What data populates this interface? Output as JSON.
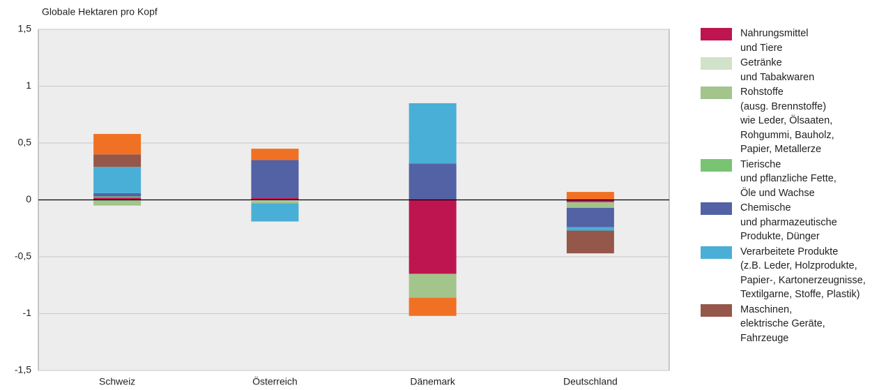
{
  "chart_data": {
    "type": "stacked-bar",
    "y_label": "Globale Hektaren pro Kopf",
    "categories": [
      "Schweiz",
      "Österreich",
      "Dänemark",
      "Deutschland"
    ],
    "ylim": [
      -1.5,
      1.5
    ],
    "yticks": [
      {
        "value": -1.5,
        "label": "-1,5"
      },
      -1,
      {
        "value": -0.5,
        "label": "-0,5"
      },
      0,
      {
        "value": 0.5,
        "label": "0,5"
      },
      1,
      {
        "value": 1.5,
        "label": "1,5"
      }
    ],
    "grid": true,
    "series": [
      {
        "name": "Nahrungsmittel\nund Tiere",
        "color": "#be1550",
        "values": [
          0.02,
          0.02,
          -0.65,
          -0.02
        ]
      },
      {
        "name": "Getränke\nund Tabakwaren",
        "color": "#d2e2ca",
        "values": [
          0,
          -0.01,
          0,
          0
        ]
      },
      {
        "name": "Rohstoffe\n(ausg. Brennstoffe)\n wie Leder, Ölsaaten,\nRohgummi, Bauholz,\nPapier, Metallerze",
        "color": "#a3c48b",
        "values": [
          -0.05,
          -0.02,
          -0.21,
          -0.05
        ]
      },
      {
        "name": "Tierische\nund pflanzliche Fette,\nÖle und Wachse",
        "color": "#78c473",
        "values": [
          0.01,
          0,
          0,
          0
        ]
      },
      {
        "name": "Chemische\nund pharmazeutische\nProdukte, Dünger",
        "color": "#5262a5",
        "values": [
          0.03,
          0.33,
          0.32,
          -0.17
        ]
      },
      {
        "name": "Verarbeitete Produkte\n(z.B. Leder, Holzprodukte,\nPapier-, Kartonerzeugnisse,\nTextilgarne, Stoffe, Plastik)",
        "color": "#4aafd6",
        "values": [
          0.23,
          -0.16,
          0.53,
          -0.03
        ]
      },
      {
        "name": "Maschinen,\nelektrische Geräte,\nFahrzeuge",
        "color": "#955749",
        "values": [
          0.11,
          0,
          0,
          -0.2
        ]
      },
      {
        "color": "#f07124",
        "values": [
          0.18,
          0.1,
          -0.16,
          0.07
        ]
      }
    ]
  }
}
